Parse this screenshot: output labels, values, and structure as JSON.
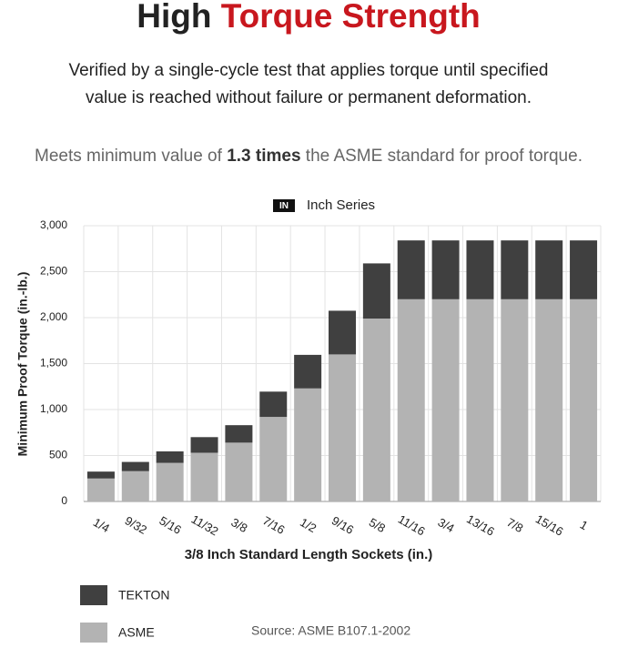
{
  "header": {
    "title_plain": "High",
    "title_accent": "Torque Strength",
    "description_lines": [
      "Verified by a single-cycle test that applies torque until specified",
      "value is reached without failure or permanent deformation."
    ],
    "note_start": "Meets minimum value of",
    "note_bold": "1.3 times",
    "note_end": "the ASME standard for proof torque."
  },
  "chart_data": {
    "type": "stacked_bar",
    "badge": "IN",
    "title": "Inch Series",
    "x_label": "3/8 Inch Standard Length Sockets (in.)",
    "y_label": "Minimum Proof Torque (in.-lb.)",
    "categories": [
      "1/4",
      "9/32",
      "5/16",
      "11/32",
      "3/8",
      "7/16",
      "1/2",
      "9/16",
      "5/8",
      "11/16",
      "3/4",
      "13/16",
      "7/8",
      "15/16",
      "1"
    ],
    "series": [
      {
        "name": "ASME",
        "color": "#b3b3b3",
        "values": [
          250,
          330,
          420,
          530,
          640,
          920,
          1230,
          1600,
          1990,
          2200,
          2200,
          2200,
          2200,
          2200,
          2200
        ]
      },
      {
        "name": "TEKTON",
        "color": "#404040",
        "values": [
          75,
          100,
          125,
          170,
          190,
          275,
          365,
          475,
          600,
          640,
          640,
          640,
          640,
          640,
          640
        ]
      }
    ],
    "ylim": [
      0,
      3000
    ],
    "yticks": [
      0,
      500,
      {
        "value": 1000,
        "label": "1,000"
      },
      {
        "value": 1500,
        "label": "1,500"
      },
      {
        "value": 2000,
        "label": "2,000"
      },
      {
        "value": 2500,
        "label": "2,500"
      },
      {
        "value": 3000,
        "label": "3,000"
      }
    ],
    "grid": true,
    "source": "Source: ASME B107.1-2002"
  }
}
